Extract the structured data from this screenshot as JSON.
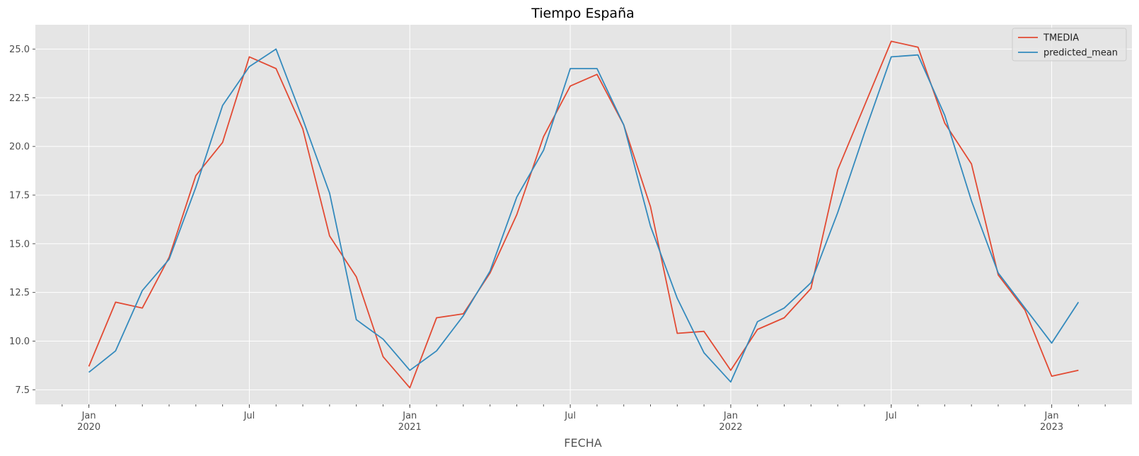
{
  "chart_data": {
    "type": "line",
    "title": "Tiempo España",
    "xlabel": "FECHA",
    "ylabel": "",
    "ylim": [
      6.75,
      26.25
    ],
    "yticks": [
      "7.5",
      "10.0",
      "12.5",
      "15.0",
      "17.5",
      "20.0",
      "22.5",
      "25.0"
    ],
    "xticks": [
      {
        "date": "2020-01",
        "label": "Jan",
        "sublabel": "2020"
      },
      {
        "date": "2020-07",
        "label": "Jul",
        "sublabel": ""
      },
      {
        "date": "2021-01",
        "label": "Jan",
        "sublabel": "2021"
      },
      {
        "date": "2021-07",
        "label": "Jul",
        "sublabel": ""
      },
      {
        "date": "2022-01",
        "label": "Jan",
        "sublabel": "2022"
      },
      {
        "date": "2022-07",
        "label": "Jul",
        "sublabel": ""
      },
      {
        "date": "2023-01",
        "label": "Jan",
        "sublabel": "2023"
      }
    ],
    "xlim": [
      "2019-11",
      "2023-04"
    ],
    "x": [
      "2020-01",
      "2020-02",
      "2020-03",
      "2020-04",
      "2020-05",
      "2020-06",
      "2020-07",
      "2020-08",
      "2020-09",
      "2020-10",
      "2020-11",
      "2020-12",
      "2021-01",
      "2021-02",
      "2021-03",
      "2021-04",
      "2021-05",
      "2021-06",
      "2021-07",
      "2021-08",
      "2021-09",
      "2021-10",
      "2021-11",
      "2021-12",
      "2022-01",
      "2022-02",
      "2022-03",
      "2022-04",
      "2022-05",
      "2022-06",
      "2022-07",
      "2022-08",
      "2022-09",
      "2022-10",
      "2022-11",
      "2022-12",
      "2023-01",
      "2023-02"
    ],
    "grid": true,
    "legend_position": "top-right",
    "series": [
      {
        "name": "TMEDIA",
        "color": "#E24A33",
        "values": [
          8.7,
          12.0,
          11.7,
          14.3,
          18.5,
          20.2,
          24.6,
          24.0,
          20.9,
          15.4,
          13.3,
          9.2,
          7.6,
          11.2,
          11.4,
          13.5,
          16.5,
          20.5,
          23.1,
          23.7,
          21.1,
          16.9,
          10.4,
          10.5,
          8.5,
          10.6,
          11.2,
          12.7,
          18.8,
          22.1,
          25.4,
          25.1,
          21.2,
          19.1,
          13.4,
          11.6,
          8.2,
          8.5
        ]
      },
      {
        "name": "predicted_mean",
        "color": "#348ABD",
        "values": [
          8.4,
          9.5,
          12.6,
          14.2,
          17.9,
          22.1,
          24.1,
          25.0,
          21.4,
          17.6,
          11.1,
          10.1,
          8.5,
          9.5,
          11.3,
          13.6,
          17.4,
          19.8,
          24.0,
          24.0,
          21.1,
          15.9,
          12.2,
          9.4,
          7.9,
          11.0,
          11.7,
          13.0,
          16.6,
          20.7,
          24.6,
          24.7,
          21.6,
          17.2,
          13.5,
          11.7,
          9.9,
          12.0
        ]
      }
    ]
  }
}
